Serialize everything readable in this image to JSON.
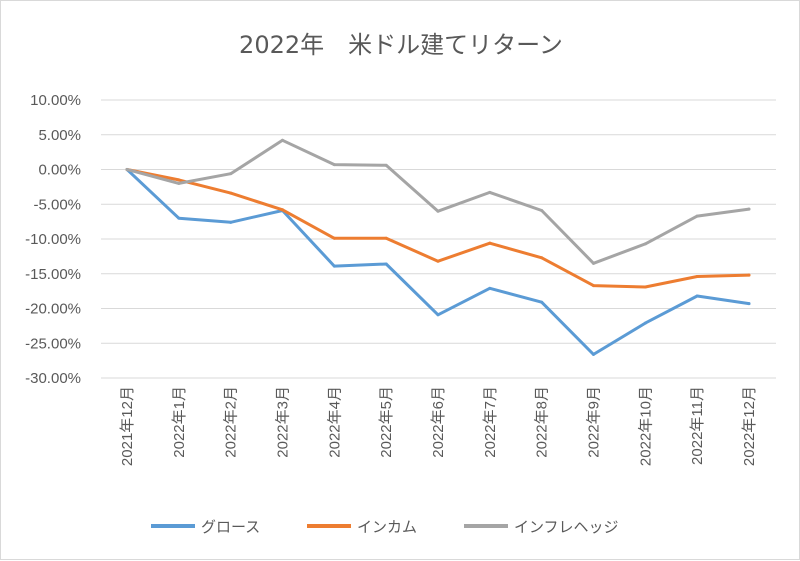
{
  "chart_data": {
    "type": "line",
    "title": "2022年　米ドル建てリターン",
    "categories": [
      "2021年12月",
      "2022年1月",
      "2022年2月",
      "2022年3月",
      "2022年4月",
      "2022年5月",
      "2022年6月",
      "2022年7月",
      "2022年8月",
      "2022年9月",
      "2022年10月",
      "2022年11月",
      "2022年12月"
    ],
    "y_ticks": [
      "10.00%",
      "5.00%",
      "0.00%",
      "-5.00%",
      "-10.00%",
      "-15.00%",
      "-20.00%",
      "-25.00%",
      "-30.00%"
    ],
    "ylim": [
      -30,
      10
    ],
    "y_unit": "%",
    "grid": true,
    "legend_position": "bottom",
    "series": [
      {
        "name": "グロース",
        "color": "#5b9bd5",
        "values": [
          0,
          -7.0,
          -7.6,
          -5.9,
          -13.9,
          -13.6,
          -20.9,
          -17.1,
          -19.1,
          -26.6,
          -22.1,
          -18.2,
          -19.3
        ]
      },
      {
        "name": "インカム",
        "color": "#ed7d31",
        "values": [
          0,
          -1.5,
          -3.4,
          -5.8,
          -9.9,
          -9.9,
          -13.2,
          -10.6,
          -12.7,
          -16.7,
          -16.9,
          -15.4,
          -15.2
        ]
      },
      {
        "name": "インフレヘッジ",
        "color": "#a5a5a5",
        "values": [
          0,
          -2.0,
          -0.6,
          4.2,
          0.7,
          0.6,
          -6.0,
          -3.3,
          -5.9,
          -13.5,
          -10.7,
          -6.7,
          -5.7
        ]
      }
    ]
  }
}
